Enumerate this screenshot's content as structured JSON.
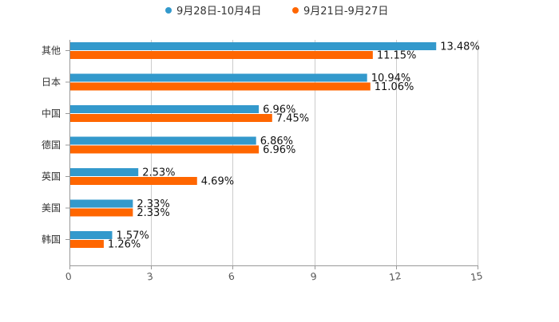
{
  "chart_data": {
    "type": "bar",
    "orientation": "horizontal",
    "title": "",
    "xlabel": "",
    "ylabel": "",
    "xlim": [
      0,
      15
    ],
    "xticks": [
      0,
      3,
      6,
      9,
      12,
      15
    ],
    "grid": true,
    "legend_position": "top-center",
    "categories": [
      "其他",
      "日本",
      "中国",
      "德国",
      "英国",
      "美国",
      "韩国"
    ],
    "series": [
      {
        "name": "9月28日-10月4日",
        "color": "#3399cc",
        "values": [
          13.48,
          10.94,
          6.96,
          6.86,
          2.53,
          2.33,
          1.57
        ],
        "labels": [
          "13.48%",
          "10.94%",
          "6.96%",
          "6.86%",
          "2.53%",
          "2.33%",
          "1.57%"
        ]
      },
      {
        "name": "9月21日-9月27日",
        "color": "#ff6600",
        "values": [
          11.15,
          11.06,
          7.45,
          6.96,
          4.69,
          2.33,
          1.26
        ],
        "labels": [
          "11.15%",
          "11.06%",
          "7.45%",
          "6.96%",
          "4.69%",
          "2.33%",
          "1.26%"
        ]
      }
    ]
  }
}
